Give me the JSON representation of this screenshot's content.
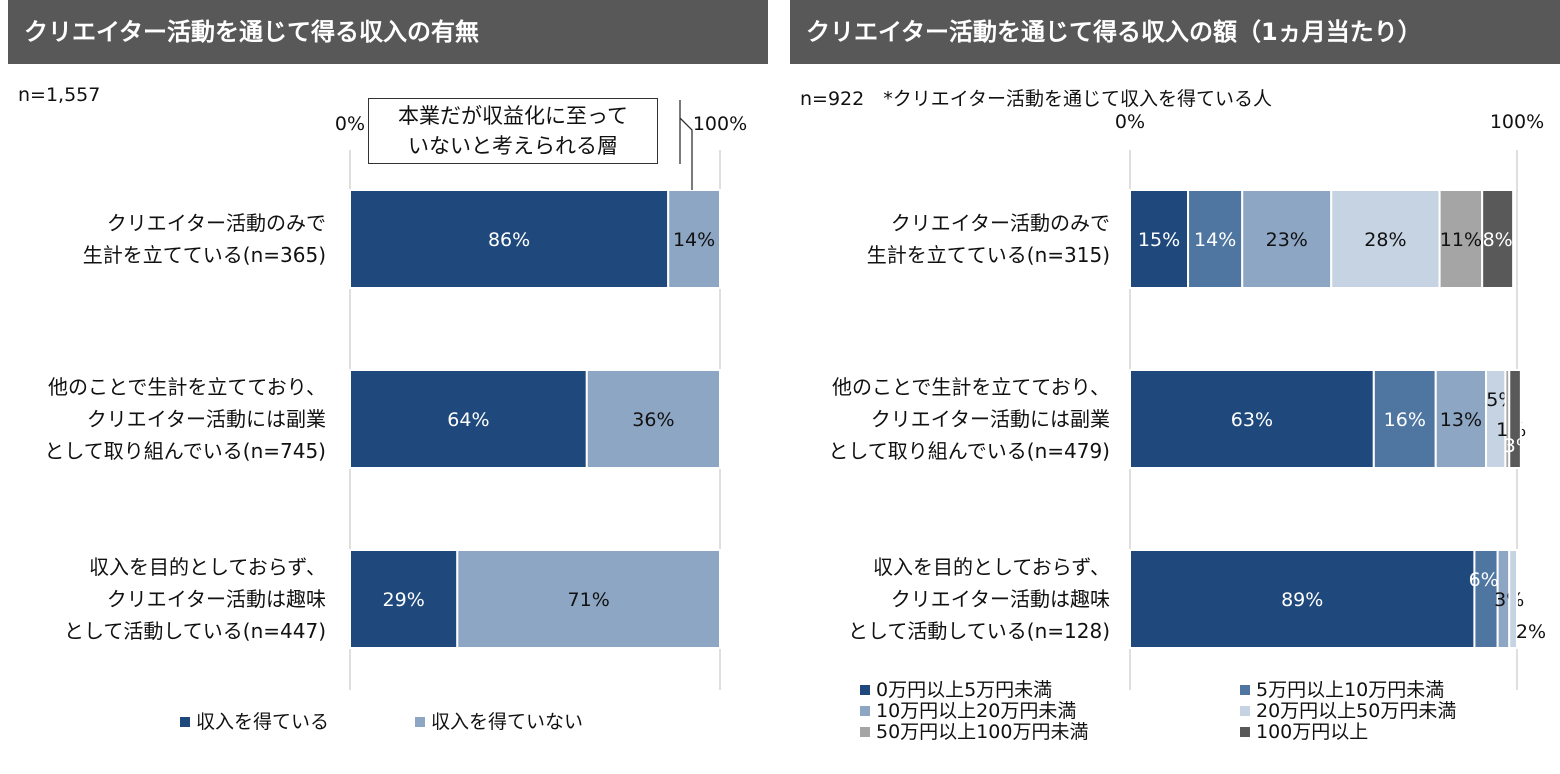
{
  "left": {
    "header": "クリエイター活動を通じて得る収入の有無",
    "note": "n=1,557",
    "callout": [
      "本業だが収益化に至って",
      "いないと考えられる層"
    ]
  },
  "right": {
    "header": "クリエイター活動を通じて得る収入の額（1ヵ月当たり）",
    "note": "n=922　*クリエイター活動を通じて収入を得ている人"
  },
  "colors": {
    "navy": "#1f497d",
    "mid_blue": "#4f76a1",
    "light_blue": "#8da6c4",
    "pale_blue": "#c5d3e3",
    "gray": "#a5a5a5",
    "dark_gray": "#595959"
  },
  "chart_data": [
    {
      "type": "bar",
      "orientation": "horizontal",
      "stacked": true,
      "percent": true,
      "title": "クリエイター活動を通じて得る収入の有無",
      "xlim": [
        0,
        100
      ],
      "tick_labels": [
        "0%",
        "100%"
      ],
      "categories": [
        [
          "クリエイター活動のみで",
          "生計を立てている(n=365)"
        ],
        [
          "他のことで生計を立てており、",
          "クリエイター活動には副業",
          "として取り組んでいる(n=745)"
        ],
        [
          "収入を目的としておらず、",
          "クリエイター活動は趣味",
          "として活動している(n=447)"
        ]
      ],
      "series": [
        {
          "name": "収入を得ている",
          "color": "#1f497d",
          "values": [
            86,
            64,
            29
          ],
          "labels": [
            "86%",
            "64%",
            "29%"
          ]
        },
        {
          "name": "収入を得ていない",
          "color": "#8da6c4",
          "values": [
            14,
            36,
            71
          ],
          "labels": [
            "14%",
            "36%",
            "71%"
          ]
        }
      ],
      "legend": "bottom"
    },
    {
      "type": "bar",
      "orientation": "horizontal",
      "stacked": true,
      "percent": true,
      "title": "クリエイター活動を通じて得る収入の額（1ヵ月当たり）",
      "xlim": [
        0,
        100
      ],
      "tick_labels": [
        "0%",
        "100%"
      ],
      "categories": [
        [
          "クリエイター活動のみで",
          "生計を立てている(n=315)"
        ],
        [
          "他のことで生計を立てており、",
          "クリエイター活動には副業",
          "として取り組んでいる(n=479)"
        ],
        [
          "収入を目的としておらず、",
          "クリエイター活動は趣味",
          "として活動している(n=128)"
        ]
      ],
      "series": [
        {
          "name": "0万円以上5万円未満",
          "color": "#1f497d",
          "values": [
            15,
            63,
            89
          ],
          "labels": [
            "15%",
            "63%",
            "89%"
          ]
        },
        {
          "name": "5万円以上10万円未満",
          "color": "#4f76a1",
          "values": [
            14,
            16,
            6
          ],
          "labels": [
            "14%",
            "16%",
            "6%"
          ]
        },
        {
          "name": "10万円以上20万円未満",
          "color": "#8da6c4",
          "values": [
            23,
            13,
            3
          ],
          "labels": [
            "23%",
            "13%",
            "3%"
          ]
        },
        {
          "name": "20万円以上50万円未満",
          "color": "#c5d3e3",
          "values": [
            28,
            5,
            2
          ],
          "labels": [
            "28%",
            "5%",
            "2%"
          ]
        },
        {
          "name": "50万円以上100万円未満",
          "color": "#a5a5a5",
          "values": [
            11,
            1,
            0
          ],
          "labels": [
            "11%",
            "1%",
            ""
          ]
        },
        {
          "name": "100万円以上",
          "color": "#595959",
          "values": [
            8,
            3,
            0
          ],
          "labels": [
            "8%",
            "3%",
            ""
          ]
        }
      ],
      "legend": "bottom"
    }
  ]
}
